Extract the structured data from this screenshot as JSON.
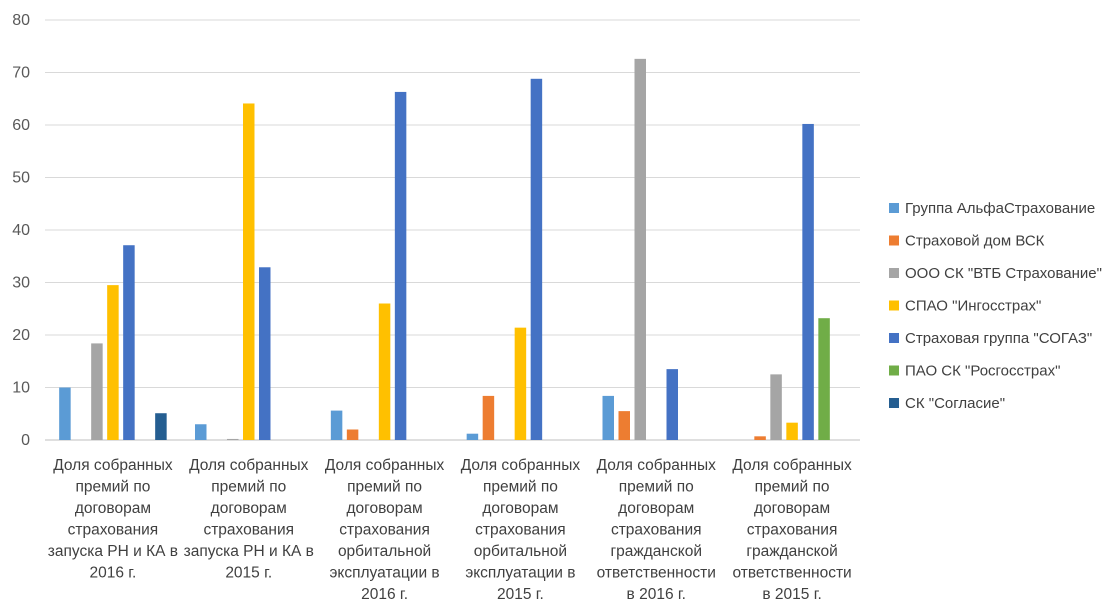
{
  "chart_data": {
    "type": "bar",
    "title": "",
    "xlabel": "",
    "ylabel": "",
    "ylim": [
      0,
      80
    ],
    "yticks": [
      0,
      10,
      20,
      30,
      40,
      50,
      60,
      70,
      80
    ],
    "grid": true,
    "legend_position": "right",
    "categories": [
      [
        "Доля собранных",
        "премий по",
        "договорам",
        "страхования",
        "запуска РН и КА в",
        "2016 г."
      ],
      [
        "Доля собранных",
        "премий по",
        "договорам",
        "страхования",
        "запуска РН и КА в",
        "2015 г."
      ],
      [
        "Доля собранных",
        "премий по",
        "договорам",
        "страхования",
        "орбитальной",
        "эксплуатации в",
        "2016 г."
      ],
      [
        "Доля собранных",
        "премий по",
        "договорам",
        "страхования",
        "орбитальной",
        "эксплуатации в",
        "2015 г."
      ],
      [
        "Доля собранных",
        "премий по",
        "договорам",
        "страхования",
        "гражданской",
        "ответственности",
        "в 2016 г."
      ],
      [
        "Доля собранных",
        "премий по",
        "договорам",
        "страхования",
        "гражданской",
        "ответственности",
        "в 2015 г."
      ]
    ],
    "series": [
      {
        "name": "Группа АльфаСтрахование",
        "color": "#5B9BD5",
        "values": [
          10,
          3,
          5.6,
          1.2,
          8.4,
          0
        ]
      },
      {
        "name": "Страховой дом ВСК",
        "color": "#ED7D31",
        "values": [
          0,
          0,
          2,
          8.4,
          5.5,
          0.7
        ]
      },
      {
        "name": "ООО СК \"ВТБ Страхование\"",
        "color": "#A5A5A5",
        "values": [
          18.4,
          0.2,
          0,
          0,
          72.6,
          12.5
        ]
      },
      {
        "name": "СПАО \"Ингосстрах\"",
        "color": "#FFC000",
        "values": [
          29.5,
          64.1,
          26,
          21.4,
          0,
          3.3
        ]
      },
      {
        "name": "Страховая группа \"СОГАЗ\"",
        "color": "#4472C4",
        "values": [
          37.1,
          32.9,
          66.3,
          68.8,
          13.5,
          60.2
        ]
      },
      {
        "name": "ПАО СК \"Росгосстрах\"",
        "color": "#70AD47",
        "values": [
          0,
          0,
          0,
          0,
          0,
          23.2
        ]
      },
      {
        "name": "СК \"Согласие\"",
        "color": "#255E91",
        "values": [
          5.1,
          0,
          0,
          0,
          0,
          0
        ]
      }
    ]
  }
}
